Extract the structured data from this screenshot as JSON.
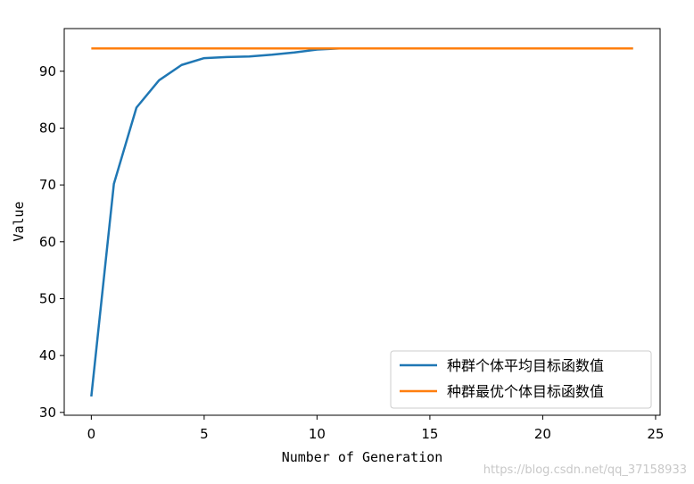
{
  "chart_data": {
    "type": "line",
    "xlabel": "Number of Generation",
    "ylabel": "Value",
    "xlim": [
      -1.2,
      25.2
    ],
    "ylim": [
      29.5,
      97.5
    ],
    "xticks": [
      0,
      5,
      10,
      15,
      20,
      25
    ],
    "yticks": [
      30,
      40,
      50,
      60,
      70,
      80,
      90
    ],
    "legend_position": "lower-right",
    "series": [
      {
        "name": "种群个体平均目标函数值",
        "color": "#1f77b4",
        "x": [
          0,
          1,
          2,
          3,
          4,
          5,
          6,
          7,
          8,
          9,
          10,
          11,
          12,
          13,
          14,
          15,
          16,
          17,
          18,
          19,
          20,
          21,
          22,
          23,
          24
        ],
        "y": [
          32.8,
          70.2,
          83.6,
          88.4,
          91.1,
          92.3,
          92.5,
          92.6,
          92.9,
          93.3,
          93.8,
          94.0,
          94.0,
          94.0,
          94.0,
          94.0,
          94.0,
          94.0,
          94.0,
          94.0,
          94.0,
          94.0,
          94.0,
          94.0,
          94.0
        ]
      },
      {
        "name": "种群最优个体目标函数值",
        "color": "#ff7f0e",
        "x": [
          0,
          1,
          2,
          3,
          4,
          5,
          6,
          7,
          8,
          9,
          10,
          11,
          12,
          13,
          14,
          15,
          16,
          17,
          18,
          19,
          20,
          21,
          22,
          23,
          24
        ],
        "y": [
          94.0,
          94.0,
          94.0,
          94.0,
          94.0,
          94.0,
          94.0,
          94.0,
          94.0,
          94.0,
          94.0,
          94.0,
          94.0,
          94.0,
          94.0,
          94.0,
          94.0,
          94.0,
          94.0,
          94.0,
          94.0,
          94.0,
          94.0,
          94.0,
          94.0
        ]
      }
    ]
  },
  "watermark": "https://blog.csdn.net/qq_37158933"
}
